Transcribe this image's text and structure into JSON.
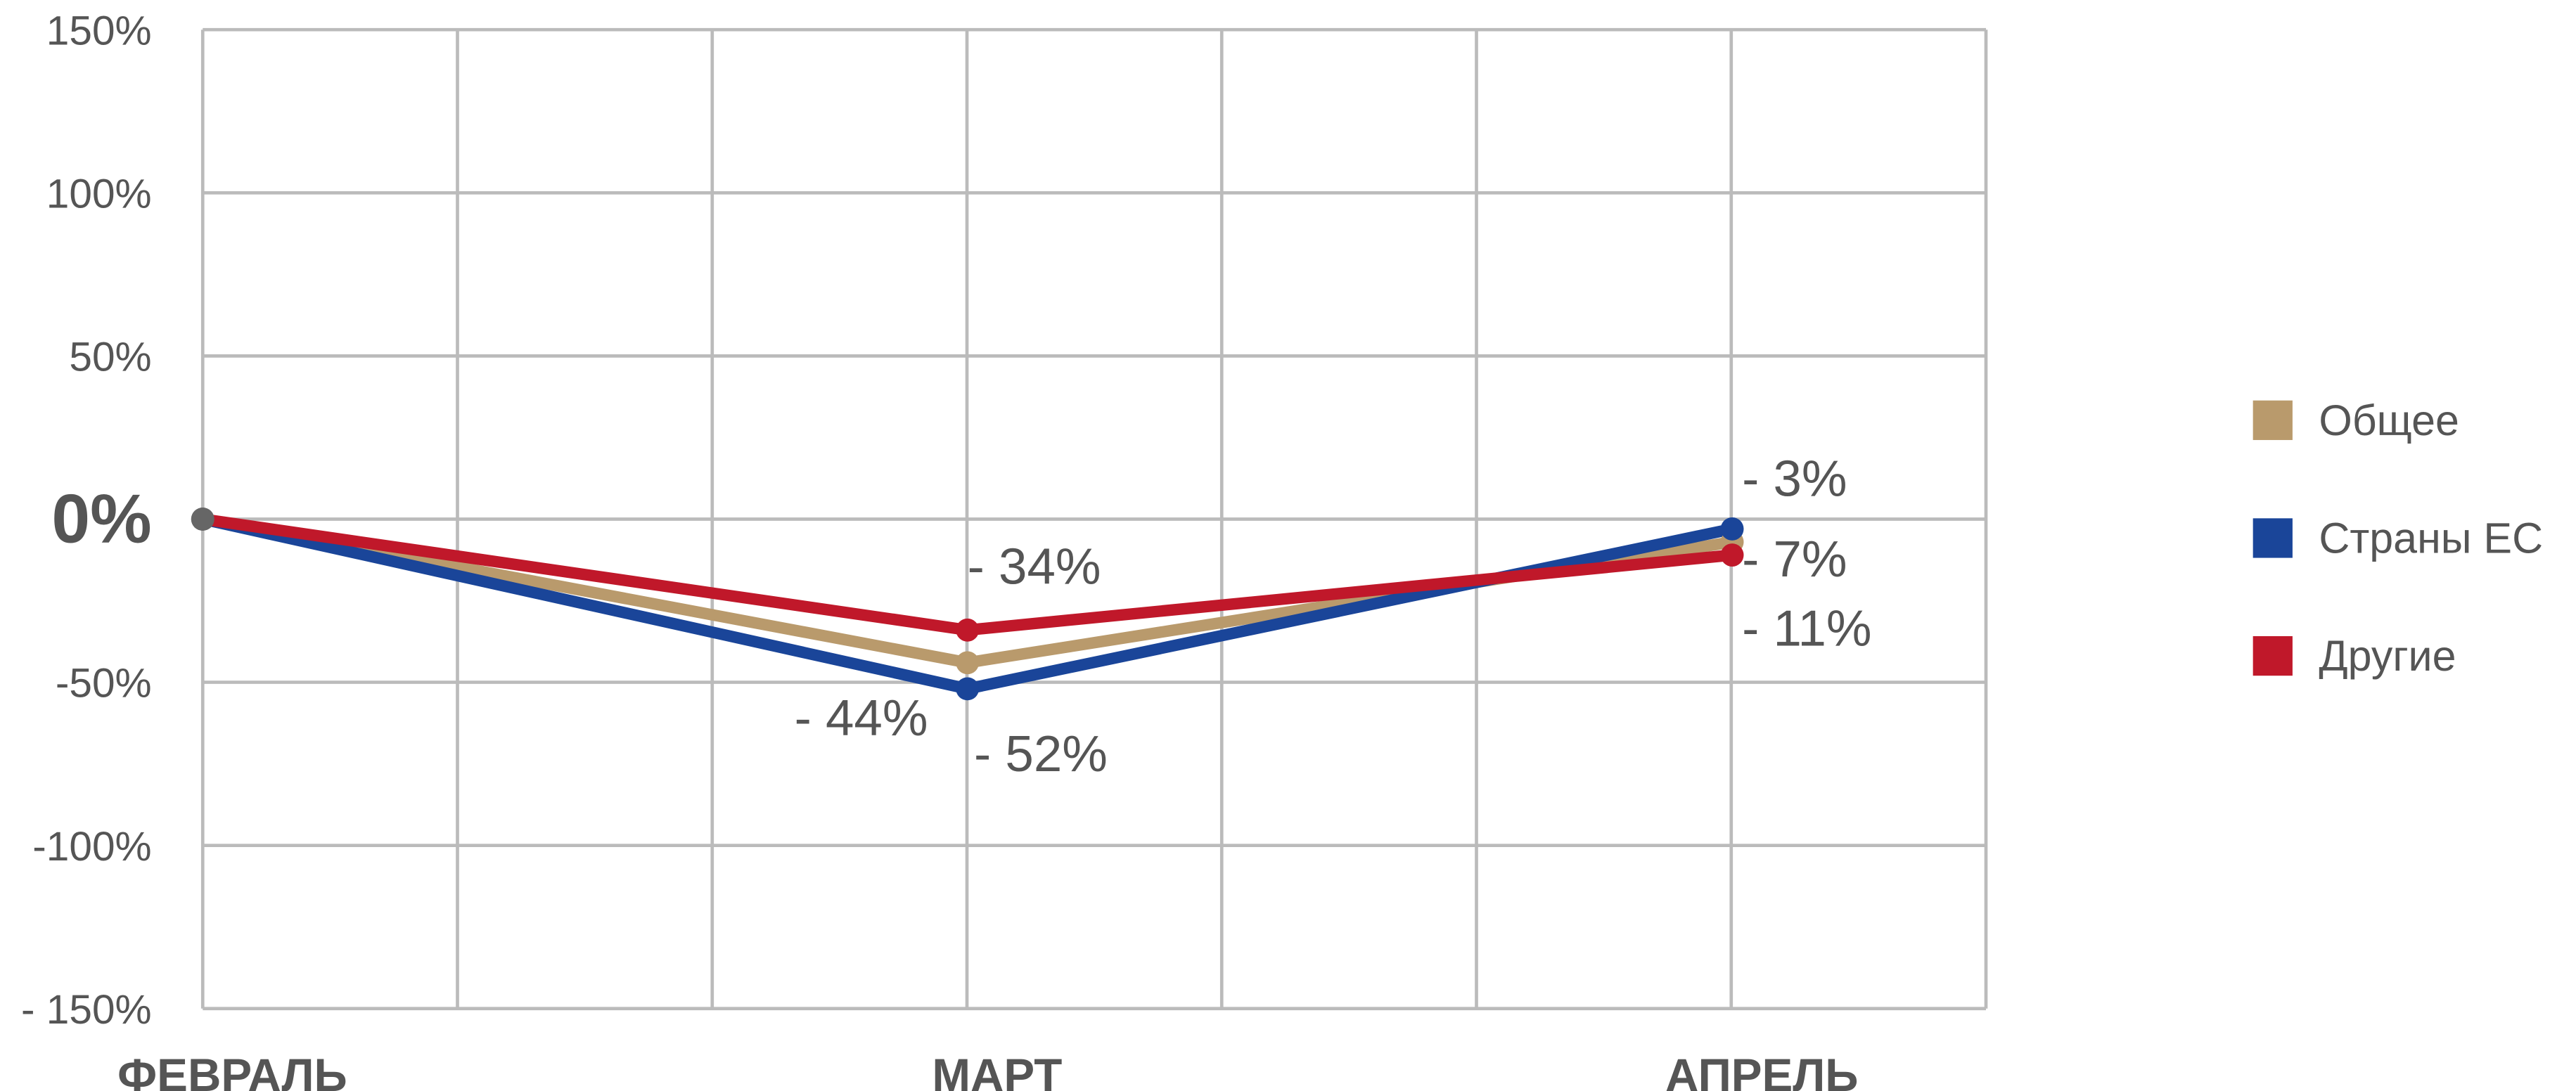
{
  "chart_data": {
    "type": "line",
    "categories": [
      "ФЕВРАЛЬ",
      "МАРТ",
      "АПРЕЛЬ"
    ],
    "series": [
      {
        "name": "Общее",
        "color": "#b99a6c",
        "values": [
          0,
          -44,
          -7
        ],
        "value_labels": [
          null,
          "- 44%",
          "- 7%"
        ]
      },
      {
        "name": "Страны ЕС",
        "color": "#1a4599",
        "values": [
          0,
          -52,
          -3
        ],
        "value_labels": [
          null,
          "- 52%",
          "- 3%"
        ]
      },
      {
        "name": "Другие",
        "color": "#c0182a",
        "values": [
          0,
          -34,
          -11
        ],
        "value_labels": [
          null,
          "- 34%",
          "- 11%"
        ]
      }
    ],
    "ylim": [
      -150,
      150
    ],
    "yticks": [
      {
        "value": -150,
        "label": "- 150%"
      },
      {
        "value": -100,
        "label": "-100%"
      },
      {
        "value": -50,
        "label": "-50%"
      },
      {
        "value": 0,
        "label": "0%"
      },
      {
        "value": 50,
        "label": "50%"
      },
      {
        "value": 100,
        "label": "100%"
      },
      {
        "value": 150,
        "label": "150%"
      }
    ],
    "grid": true,
    "legend": "right"
  }
}
